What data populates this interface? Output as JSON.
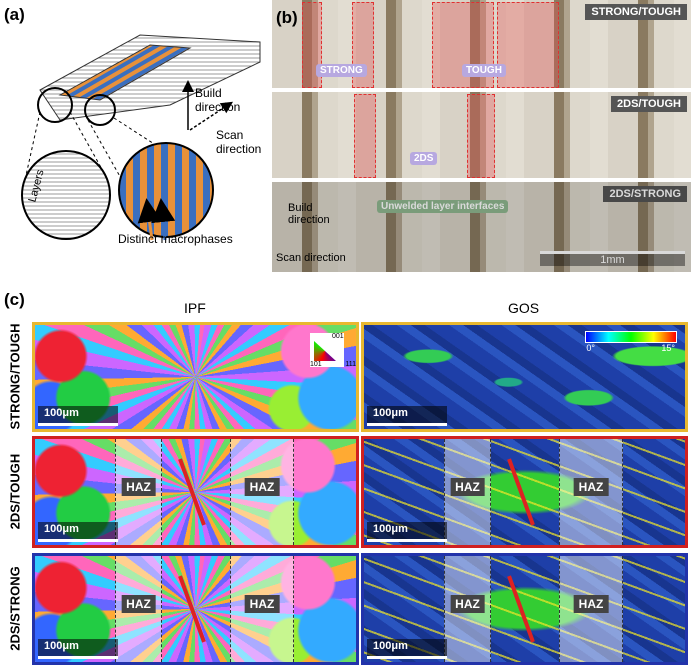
{
  "panel_a": {
    "label": "(a)",
    "build_direction": "Build direction",
    "scan_direction": "Scan direction",
    "layers": "Layers",
    "macrophases": "Distinct macrophases"
  },
  "panel_b": {
    "label": "(b)",
    "strips": [
      {
        "title": "STRONG/TOUGH",
        "tags": [
          "STRONG",
          "TOUGH"
        ]
      },
      {
        "title": "2DS/TOUGH",
        "tags": [
          "2DS"
        ]
      },
      {
        "title": "2DS/STRONG",
        "tags": [
          "Unwelded layer interfaces"
        ]
      }
    ],
    "build_direction": "Build direction",
    "scan_direction": "Scan direction",
    "scale_bar": "1mm"
  },
  "panel_c": {
    "label": "(c)",
    "columns": [
      "IPF",
      "GOS"
    ],
    "ipf_key": [
      "001",
      "101",
      "111"
    ],
    "gos_colorbar": [
      "0°",
      "15°"
    ],
    "rows": [
      {
        "label": "STRONG/TOUGH",
        "ipf_scale": "100μm",
        "gos_scale": "100μm",
        "ipf_haz": [],
        "gos_haz": []
      },
      {
        "label": "2DS/TOUGH",
        "ipf_scale": "100μm",
        "gos_scale": "100μm",
        "ipf_haz": [
          "HAZ",
          "HAZ"
        ],
        "gos_haz": [
          "HAZ",
          "HAZ"
        ]
      },
      {
        "label": "2DS/STRONG",
        "ipf_scale": "100μm",
        "gos_scale": "100μm",
        "ipf_haz": [
          "HAZ",
          "HAZ"
        ],
        "gos_haz": [
          "HAZ",
          "HAZ"
        ]
      }
    ]
  }
}
